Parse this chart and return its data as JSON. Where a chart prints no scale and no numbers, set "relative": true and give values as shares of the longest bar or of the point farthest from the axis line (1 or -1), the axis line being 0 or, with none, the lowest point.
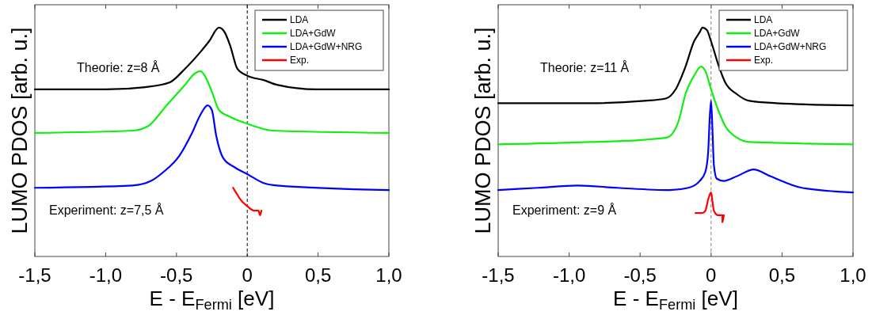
{
  "chart_data": [
    {
      "type": "line",
      "relative": true,
      "xlabel": "E - E$_{Fermi}$ [eV]",
      "ylabel": "LUMO PDOS [arb. u.]",
      "xlim": [
        -1.5,
        1.0
      ],
      "xticks": [
        {
          "value": -1.5,
          "label": "-1,5"
        },
        {
          "value": -1.0,
          "label": "-1,0"
        },
        {
          "value": -0.5,
          "label": "-0,5"
        },
        0,
        {
          "value": 0.5,
          "label": "0,5"
        },
        {
          "value": 1.0,
          "label": "1,0"
        }
      ],
      "tick_labels": "x",
      "legend": "top right",
      "ref_lines": [
        {
          "axis": "x",
          "value": 0,
          "color": "#000000",
          "line_style": "dashed"
        }
      ],
      "annotations": [
        "Theorie: z=8 Å",
        "Experiment: z=7,5 Å"
      ],
      "series": [
        {
          "name": "LDA",
          "color": "#000000",
          "x": [
            -1.5,
            -1.0,
            -0.72,
            -0.55,
            -0.44,
            -0.35,
            -0.27,
            -0.2,
            -0.16,
            -0.12,
            -0.07,
            0,
            0.12,
            0.21,
            0.49,
            1.0
          ],
          "values": [
            0.73,
            0.73,
            0.74,
            0.76,
            0.82,
            0.88,
            0.94,
            1.0,
            0.98,
            0.92,
            0.82,
            0.79,
            0.77,
            0.75,
            0.73,
            0.73
          ]
        },
        {
          "name": "LDA+GdW",
          "color": "#11ee11",
          "x": [
            -1.5,
            -0.81,
            -0.7,
            -0.57,
            -0.44,
            -0.37,
            -0.33,
            -0.3,
            -0.25,
            -0.2,
            -0.12,
            0,
            0.18,
            1.0
          ],
          "values": [
            0.54,
            0.55,
            0.57,
            0.66,
            0.75,
            0.8,
            0.81,
            0.79,
            0.72,
            0.64,
            0.61,
            0.58,
            0.55,
            0.54
          ]
        },
        {
          "name": "LDA+GdW+NRG",
          "color": "#0000ff",
          "x": [
            -1.5,
            -0.81,
            -0.68,
            -0.59,
            -0.48,
            -0.39,
            -0.33,
            -0.28,
            -0.25,
            -0.22,
            -0.17,
            -0.09,
            0,
            0.12,
            0.21,
            1.0
          ],
          "values": [
            0.3,
            0.31,
            0.33,
            0.37,
            0.44,
            0.54,
            0.62,
            0.66,
            0.64,
            0.53,
            0.43,
            0.39,
            0.36,
            0.32,
            0.31,
            0.29
          ]
        },
        {
          "name": "Exp.",
          "color": "#ff0000",
          "x": [
            -0.1,
            -0.08,
            -0.05,
            0,
            0.05,
            0.08,
            0.09,
            0.1
          ],
          "values": [
            0.3,
            0.28,
            0.25,
            0.22,
            0.2,
            0.2,
            0.18,
            0.2
          ]
        }
      ]
    },
    {
      "type": "line",
      "relative": true,
      "xlabel": "E - E$_{Fermi}$ [eV]",
      "ylabel": "LUMO PDOS [arb. u.]",
      "xlim": [
        -1.5,
        1.0
      ],
      "xticks": [
        {
          "value": -1.5,
          "label": "-1,5"
        },
        {
          "value": -1.0,
          "label": "-1,0"
        },
        {
          "value": -0.5,
          "label": "-0,5"
        },
        0,
        {
          "value": 0.5,
          "label": "0,5"
        },
        {
          "value": 1.0,
          "label": "1,0"
        }
      ],
      "tick_labels": "x",
      "legend": "top right",
      "ref_lines": [
        {
          "axis": "x",
          "value": 0,
          "color": "#808080",
          "line_style": "dashed"
        }
      ],
      "annotations": [
        "Theorie: z=11 Å",
        "Experiment: z=9 Å"
      ],
      "series": [
        {
          "name": "LDA",
          "color": "#000000",
          "x": [
            -1.5,
            -0.85,
            -0.47,
            -0.32,
            -0.25,
            -0.18,
            -0.12,
            -0.08,
            -0.06,
            -0.03,
            0,
            0.05,
            0.1,
            0.18,
            0.27,
            0.46,
            1.0
          ],
          "values": [
            0.67,
            0.67,
            0.68,
            0.69,
            0.73,
            0.83,
            0.94,
            0.98,
            1.0,
            0.99,
            0.94,
            0.84,
            0.76,
            0.71,
            0.68,
            0.67,
            0.66
          ]
        },
        {
          "name": "LDA+GdW",
          "color": "#11ee11",
          "x": [
            -1.5,
            -0.85,
            -0.47,
            -0.31,
            -0.23,
            -0.18,
            -0.12,
            -0.07,
            -0.04,
            0,
            0.05,
            0.1,
            0.18,
            0.27,
            1.0
          ],
          "values": [
            0.49,
            0.5,
            0.51,
            0.52,
            0.59,
            0.71,
            0.79,
            0.83,
            0.81,
            0.73,
            0.64,
            0.57,
            0.52,
            0.5,
            0.49
          ]
        },
        {
          "name": "LDA+GdW+NRG",
          "color": "#0000ff",
          "x": [
            -1.5,
            -1.22,
            -0.94,
            -0.66,
            -0.29,
            -0.16,
            -0.08,
            -0.04,
            -0.02,
            -0.01,
            0,
            0.01,
            0.02,
            0.04,
            0.09,
            0.18,
            0.3,
            0.42,
            0.64,
            1.0
          ],
          "values": [
            0.29,
            0.3,
            0.31,
            0.3,
            0.29,
            0.3,
            0.33,
            0.37,
            0.46,
            0.6,
            0.68,
            0.55,
            0.4,
            0.34,
            0.33,
            0.35,
            0.38,
            0.35,
            0.3,
            0.28
          ]
        },
        {
          "name": "Exp.",
          "color": "#ff0000",
          "x": [
            -0.11,
            -0.06,
            -0.04,
            -0.02,
            0,
            0.01,
            0.02,
            0.05,
            0.08,
            0.08,
            0.09
          ],
          "values": [
            0.19,
            0.19,
            0.2,
            0.25,
            0.28,
            0.24,
            0.2,
            0.18,
            0.18,
            0.15,
            0.18
          ]
        }
      ]
    }
  ]
}
